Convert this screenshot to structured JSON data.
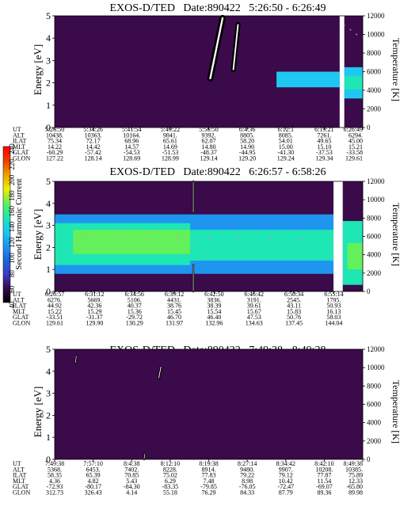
{
  "chart_data": [
    {
      "type": "heatmap",
      "title": "EXOS-D/TED   Date:890422   5:26:50 - 6:26:49",
      "ylabel": "Energy [eV]",
      "y2label": "Temperature [K]",
      "ylim": [
        0,
        5
      ],
      "y2lim": [
        0,
        12000
      ],
      "yticks": [
        "0",
        "1",
        "2",
        "3",
        "4",
        "5"
      ],
      "y2ticks": [
        "0",
        "2000",
        "4000",
        "6000",
        "8000",
        "10000",
        "12000"
      ],
      "time_ticks": [
        "5:26:50",
        "5:34:26",
        "5:41:54",
        "5:49:22",
        "5:56:50",
        "6:4:36",
        "6:12:1",
        "6:19:21",
        "6:26:49"
      ],
      "ephemeris": [
        {
          "label": "UT",
          "values": [
            "5:26:50",
            "5:34:26",
            "5:41:54",
            "5:49:22",
            "5:56:50",
            "6:4:36",
            "6:12:1",
            "6:19:21",
            "6:26:49"
          ]
        },
        {
          "label": "ALT",
          "values": [
            "10438.",
            "10363.",
            "10164.",
            "9841.",
            "9392.",
            "8805.",
            "8085.",
            "7261.",
            "6294."
          ]
        },
        {
          "label": "ILAT",
          "values": [
            "75.34",
            "72.17",
            "68.96",
            "65.61",
            "62.07",
            "58.20",
            "54.01",
            "49.65",
            "45.00"
          ]
        },
        {
          "label": "MLT",
          "values": [
            "14.22",
            "14.42",
            "14.57",
            "14.69",
            "14.80",
            "14.90",
            "15.00",
            "15.10",
            "15.21"
          ]
        },
        {
          "label": "GLAT",
          "values": [
            "-60.29",
            "-57.42",
            "-54.53",
            "-51.53",
            "-48.37",
            "-44.95",
            "-41.30",
            "-37.53",
            "-33.58"
          ]
        },
        {
          "label": "GLON",
          "values": [
            "127.22",
            "128.14",
            "128.69",
            "128.99",
            "129.14",
            "129.20",
            "129.24",
            "129.34",
            "129.61"
          ]
        }
      ],
      "background_level": 50,
      "gaps": [
        [
          0.925,
          0.94
        ]
      ],
      "patches": [
        {
          "t": [
            0.72,
            0.925
          ],
          "e": [
            1.8,
            2.5
          ],
          "level": 130
        },
        {
          "t": [
            0.94,
            1.0
          ],
          "e": [
            1.3,
            2.7
          ],
          "level": 130
        },
        {
          "t": [
            0.94,
            1.0
          ],
          "e": [
            1.7,
            2.3
          ],
          "level": 150
        }
      ],
      "streaks": [
        {
          "t0": 0.505,
          "e0": 2.2,
          "t1": 0.545,
          "e1": 4.9,
          "w": 0.02
        },
        {
          "t0": 0.58,
          "e0": 2.6,
          "t1": 0.595,
          "e1": 4.6,
          "w": 0.016
        }
      ],
      "temperature": {
        "t": [
          0.94,
          0.96,
          0.98,
          1.0,
          1.02,
          1.05,
          1.08,
          1.11,
          1.14,
          1.17,
          1.2,
          1.23,
          1.26,
          1.29
        ],
        "values": [
          11000,
          10500,
          10000,
          9700,
          9400,
          9000,
          8700,
          8400,
          8100,
          7800,
          7500,
          7300,
          7100,
          6900
        ]
      }
    },
    {
      "type": "heatmap",
      "title": "EXOS-D/TED   Date:890422   6:26:57 - 6:58:26",
      "ylabel": "Energy [eV]",
      "y2label": "Temperature [K]",
      "ylim": [
        0,
        5
      ],
      "y2lim": [
        0,
        12000
      ],
      "yticks": [
        "0",
        "1",
        "2",
        "3",
        "4",
        "5"
      ],
      "y2ticks": [
        "0",
        "2000",
        "4000",
        "6000",
        "8000",
        "10000",
        "12000"
      ],
      "time_ticks": [
        "6:26:57",
        "6:31:12",
        "6:34:56",
        "6:39:12",
        "6:42:50",
        "6:46:42",
        "6:50:34",
        "6:55:14"
      ],
      "ephemeris": [
        {
          "label": "UT",
          "values": [
            "6:26:57",
            "6:31:12",
            "6:34:56",
            "6:39:12",
            "6:42:50",
            "6:46:42",
            "6:50:34",
            "6:55:14"
          ]
        },
        {
          "label": "ALT",
          "values": [
            "6276.",
            "5669.",
            "5106.",
            "4431.",
            "3836.",
            "3191.",
            "2545.",
            "1795."
          ]
        },
        {
          "label": "ILAT",
          "values": [
            "44.92",
            "42.36",
            "40.37",
            "38.76",
            "38.39",
            "39.61",
            "43.11",
            "50.93"
          ]
        },
        {
          "label": "MLT",
          "values": [
            "15.22",
            "15.29",
            "15.36",
            "15.45",
            "15.54",
            "15.67",
            "15.83",
            "16.13"
          ]
        },
        {
          "label": "GLAT",
          "values": [
            "-33.51",
            "-31.37",
            "-29.72",
            "46.70",
            "46.40",
            "47.53",
            "50.76",
            "58.03"
          ]
        },
        {
          "label": "GLON",
          "values": [
            "129.61",
            "129.90",
            "130.29",
            "131.97",
            "132.96",
            "134.63",
            "137.45",
            "144.04"
          ]
        }
      ],
      "background_level": 50,
      "gaps": [
        [
          0.905,
          0.935
        ]
      ],
      "patches": [
        {
          "t": [
            0.0,
            0.905
          ],
          "e": [
            0.8,
            3.5
          ],
          "level": 120
        },
        {
          "t": [
            0.0,
            0.44
          ],
          "e": [
            1.2,
            3.1
          ],
          "level": 140
        },
        {
          "t": [
            0.44,
            0.905
          ],
          "e": [
            1.4,
            2.8
          ],
          "level": 140
        },
        {
          "t": [
            0.06,
            0.44
          ],
          "e": [
            1.7,
            2.8
          ],
          "level": 160
        },
        {
          "t": [
            0.44,
            0.9
          ],
          "e": [
            1.8,
            2.5
          ],
          "level": 155
        },
        {
          "t": [
            0.935,
            1.0
          ],
          "e": [
            0.3,
            3.2
          ],
          "level": 145
        },
        {
          "t": [
            0.95,
            1.0
          ],
          "e": [
            1.0,
            2.2
          ],
          "level": 175
        }
      ],
      "streaks": [
        {
          "t0": 0.45,
          "e0": 0.0,
          "t1": 0.45,
          "e1": 1.2,
          "w": 0.006
        },
        {
          "t0": 0.45,
          "e0": 3.6,
          "t1": 0.45,
          "e1": 5.0,
          "w": 0.006
        }
      ],
      "temperature": {
        "t": [
          0.0,
          0.1,
          0.2,
          0.3,
          0.4,
          0.45,
          0.5,
          0.6,
          0.7,
          0.8,
          0.9
        ],
        "values": [
          6000,
          6100,
          5900,
          5800,
          5700,
          5600,
          5800,
          5900,
          5800,
          5700,
          5600
        ]
      }
    },
    {
      "type": "heatmap",
      "title": "EXOS-D/TED   Date:890422   7:49:38 - 8:49:38",
      "ylabel": "Energy [eV]",
      "y2label": "Temperature [K]",
      "ylim": [
        0,
        5
      ],
      "y2lim": [
        0,
        12000
      ],
      "yticks": [
        "0",
        "1",
        "2",
        "3",
        "4",
        "5"
      ],
      "y2ticks": [
        "0",
        "2000",
        "4000",
        "6000",
        "8000",
        "10000",
        "12000"
      ],
      "time_ticks": [
        "7:49:38",
        "7:57:10",
        "8:4:38",
        "8:12:10",
        "8:19:38",
        "8:27:14",
        "8:34:42",
        "8:42:10",
        "8:49:38"
      ],
      "ephemeris": [
        {
          "label": "UT",
          "values": [
            "7:49:38",
            "7:57:10",
            "8:4:38",
            "8:12:10",
            "8:19:38",
            "8:27:14",
            "8:34:42",
            "8:42:10",
            "8:49:38"
          ]
        },
        {
          "label": "ALT",
          "values": [
            "5368.",
            "6453.",
            "7402.",
            "8228.",
            "8914.",
            "9480.",
            "9907.",
            "10208.",
            "10385."
          ]
        },
        {
          "label": "ILAT",
          "values": [
            "58.35",
            "65.39",
            "70.85",
            "75.02",
            "77.83",
            "79.22",
            "79.12",
            "77.87",
            "75.89"
          ]
        },
        {
          "label": "MLT",
          "values": [
            "4.36",
            "4.82",
            "5.43",
            "6.29",
            "7.48",
            "8.98",
            "10.42",
            "11.54",
            "12.33"
          ]
        },
        {
          "label": "GLAT",
          "values": [
            "-72.93",
            "-80.17",
            "-84.30",
            "-83.35",
            "-79.85",
            "-76.05",
            "-72.47",
            "-69.07",
            "-65.80"
          ]
        },
        {
          "label": "GLON",
          "values": [
            "312.73",
            "326.43",
            "4.14",
            "55.18",
            "76.29",
            "84.33",
            "87.79",
            "89.36",
            "89.98"
          ]
        }
      ],
      "background_level": 50,
      "gaps": [],
      "patches": [],
      "streaks": [
        {
          "t0": 0.338,
          "e0": 3.7,
          "t1": 0.345,
          "e1": 4.2,
          "w": 0.008
        },
        {
          "t0": 0.068,
          "e0": 4.4,
          "t1": 0.07,
          "e1": 4.7,
          "w": 0.006
        },
        {
          "t0": 0.29,
          "e0": 0.0,
          "t1": 0.293,
          "e1": 0.25,
          "w": 0.006
        }
      ],
      "temperature": {
        "t": [],
        "values": []
      }
    }
  ],
  "colorbar": {
    "label": "Second Harmonic Current",
    "ticks": [
      "40",
      "60",
      "80",
      "100",
      "120",
      "140",
      "160",
      "180",
      "200",
      "220",
      "240"
    ],
    "range": [
      40,
      240
    ],
    "colors": [
      "#000000",
      "#3a0a4a",
      "#3c3cc8",
      "#1e64dc",
      "#1e96f0",
      "#1ec8f0",
      "#1ee6b4",
      "#64f05a",
      "#f0f000",
      "#f0a000",
      "#f03c00",
      "#ff0000"
    ]
  }
}
